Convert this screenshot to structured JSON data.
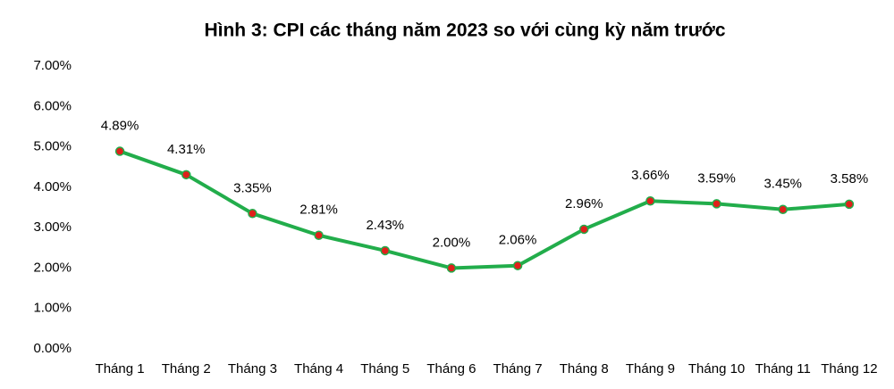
{
  "chart_data": {
    "type": "line",
    "title": "Hình 3: CPI các tháng năm 2023 so với cùng kỳ năm trước",
    "categories": [
      "Tháng 1",
      "Tháng 2",
      "Tháng 3",
      "Tháng 4",
      "Tháng 5",
      "Tháng 6",
      "Tháng 7",
      "Tháng 8",
      "Tháng 9",
      "Tháng 10",
      "Tháng 11",
      "Tháng 12"
    ],
    "series": [
      {
        "color": "#22ad4b",
        "marker_color": "#e0201b",
        "values": [
          4.89,
          4.31,
          3.35,
          2.81,
          2.43,
          2.0,
          2.06,
          2.96,
          3.66,
          3.59,
          3.45,
          3.58
        ],
        "value_labels": [
          "4.89%",
          "4.31%",
          "3.35%",
          "2.81%",
          "2.43%",
          "2.00%",
          "2.06%",
          "2.96%",
          "3.66%",
          "3.59%",
          "3.45%",
          "3.58%"
        ]
      }
    ],
    "ylim": [
      0,
      7
    ],
    "yticks": [
      {
        "value": 0,
        "label": "0.00%"
      },
      {
        "value": 1,
        "label": "1.00%"
      },
      {
        "value": 2,
        "label": "2.00%"
      },
      {
        "value": 3,
        "label": "3.00%"
      },
      {
        "value": 4,
        "label": "4.00%"
      },
      {
        "value": 5,
        "label": "5.00%"
      },
      {
        "value": 6,
        "label": "6.00%"
      },
      {
        "value": 7,
        "label": "7.00%"
      }
    ],
    "grid": false
  }
}
